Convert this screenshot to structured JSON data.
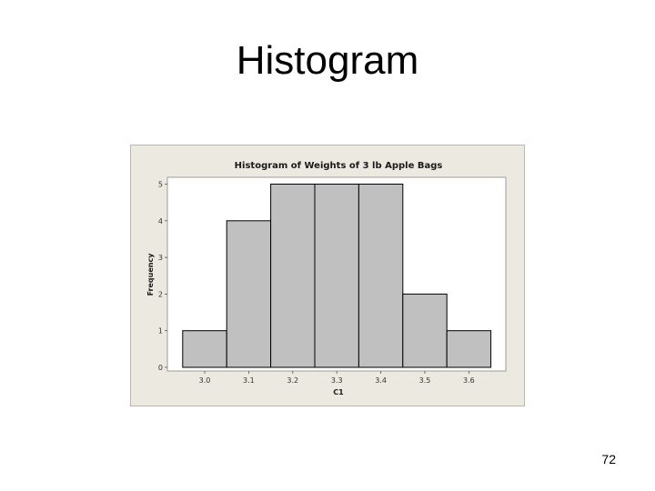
{
  "slide": {
    "title": "Histogram",
    "page_number": "72"
  },
  "colors": {
    "figure_background": "#ece9e0",
    "plot_background": "#ffffff",
    "bar_fill": "#c0c0c0",
    "bar_stroke": "#000000"
  },
  "chart_data": {
    "type": "bar",
    "title": "Histogram of Weights of 3 lb Apple Bags",
    "xlabel": "C1",
    "ylabel": "Frequency",
    "categories": [
      "3.0",
      "3.1",
      "3.2",
      "3.3",
      "3.4",
      "3.5",
      "3.6"
    ],
    "values": [
      1,
      4,
      5,
      5,
      5,
      2,
      1
    ],
    "yticks": [
      "0",
      "1",
      "2",
      "3",
      "4",
      "5"
    ],
    "ylim": [
      0,
      5.5
    ],
    "grid": false,
    "legend": "none"
  }
}
